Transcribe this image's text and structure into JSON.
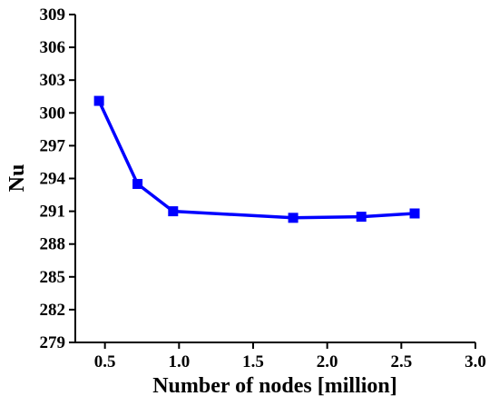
{
  "chart_data": {
    "type": "line",
    "title": "",
    "xlabel": "Number of nodes [million]",
    "ylabel": "Nu",
    "xlim": [
      0.3,
      3.0
    ],
    "ylim": [
      279,
      309
    ],
    "x_ticks": [
      0.5,
      1.0,
      1.5,
      2.0,
      2.5,
      3.0
    ],
    "x_tick_labels": [
      "0.5",
      "1.0",
      "1.5",
      "2.0",
      "2.5",
      "3.0"
    ],
    "y_ticks": [
      279,
      282,
      285,
      288,
      291,
      294,
      297,
      300,
      303,
      306,
      309
    ],
    "y_tick_labels": [
      "279",
      "282",
      "285",
      "288",
      "291",
      "294",
      "297",
      "300",
      "303",
      "306",
      "309"
    ],
    "grid": false,
    "legend": "none",
    "series": [
      {
        "color": "#0000ff",
        "marker": "square",
        "x": [
          0.46,
          0.72,
          0.96,
          1.77,
          2.23,
          2.59
        ],
        "y": [
          301.1,
          293.5,
          291.0,
          290.4,
          290.5,
          290.8
        ]
      }
    ]
  }
}
